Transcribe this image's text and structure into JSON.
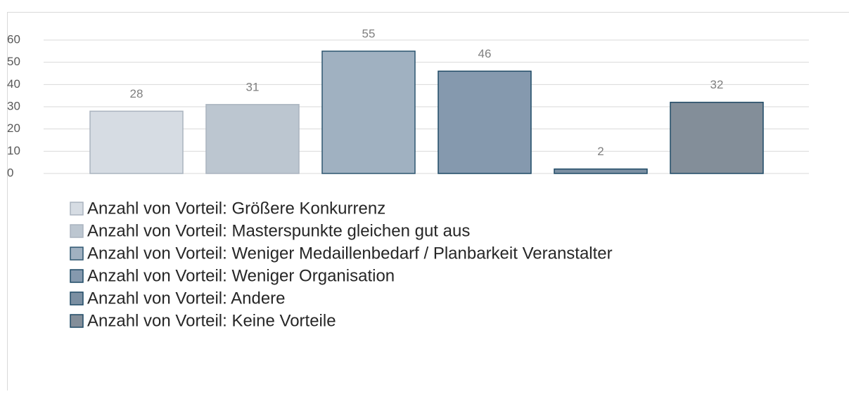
{
  "chart_data": {
    "type": "bar",
    "series": [
      {
        "name": "Anzahl von Vorteil: Größere Konkurrenz",
        "color": "#d6dce3",
        "values": [
          28
        ]
      },
      {
        "name": "Anzahl von Vorteil: Masterspunkte gleichen gut aus",
        "color": "#bcc6d0",
        "values": [
          31
        ]
      },
      {
        "name": "Anzahl von Vorteil: Weniger Medaillenbedarf / Planbarkeit Veranstalter",
        "color": "#a0b1c1",
        "values": [
          55
        ]
      },
      {
        "name": "Anzahl von Vorteil: Weniger Organisation",
        "color": "#8599ae",
        "values": [
          46
        ]
      },
      {
        "name": "Anzahl von Vorteil: Andere",
        "color": "#7b8fa2",
        "values": [
          2
        ]
      },
      {
        "name": "Anzahl von Vorteil: Keine Vorteile",
        "color": "#838e99",
        "values": [
          32
        ]
      }
    ],
    "ylim": [
      0,
      60
    ],
    "yticks": [
      0,
      10,
      20,
      30,
      40,
      50,
      60
    ],
    "grid": true
  }
}
